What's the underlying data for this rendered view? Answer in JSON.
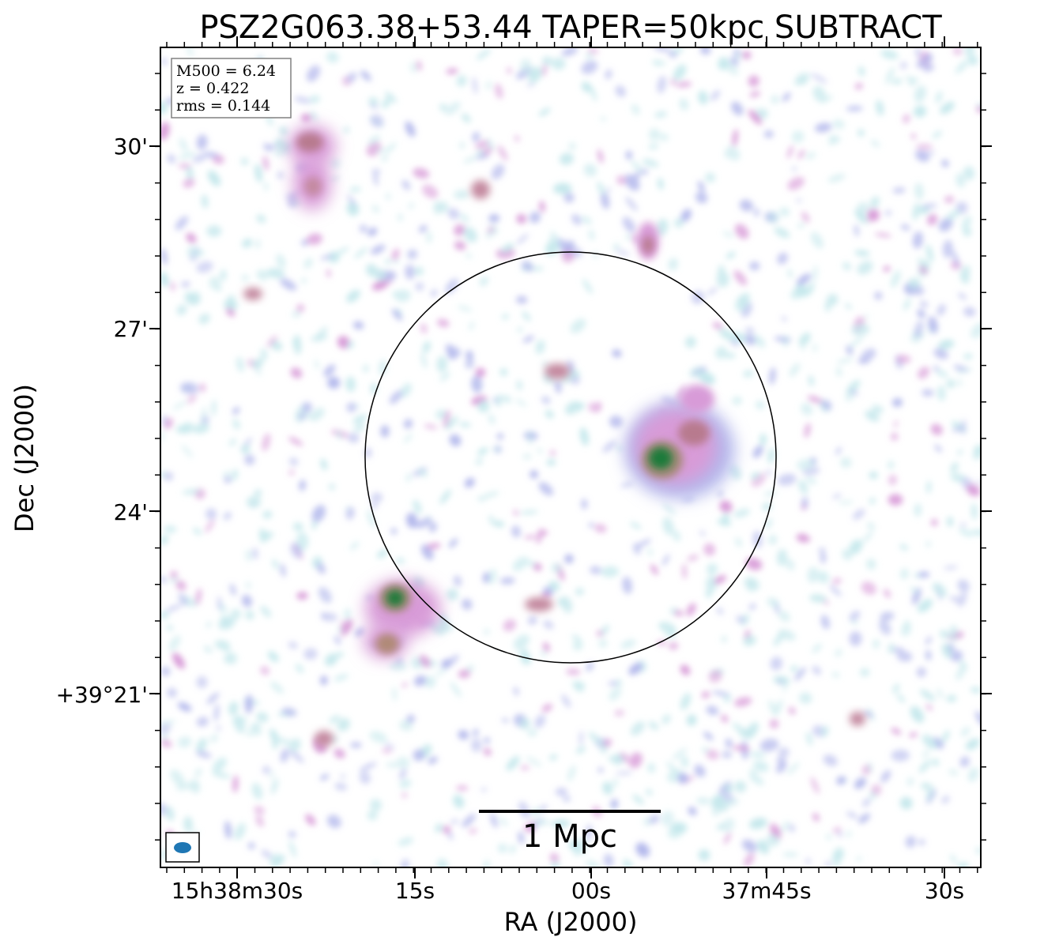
{
  "figure": {
    "title": "PSZ2G063.38+53.44 TAPER=50kpc SUBTRACT",
    "xlabel": "RA (J2000)",
    "ylabel": "Dec (J2000)",
    "x_ticks": [
      "15h38m30s",
      "15s",
      "00s",
      "37m45s",
      "30s"
    ],
    "y_ticks": [
      "30'",
      "27'",
      "24'",
      "+39°21'"
    ],
    "info_box": {
      "line1": "M500 = 6.24",
      "line2": "z = 0.422",
      "line3": "rms = 0.144"
    },
    "scale_bar_label": "1 Mpc",
    "colors": {
      "low": "#c5e8ec",
      "mid_low": "#b3b8ec",
      "mid": "#d89bd8",
      "mid_high": "#b87a8e",
      "high": "#1f7a3a",
      "beam": "#1f77b4",
      "circle": "#000000"
    },
    "icons": {
      "beam": "beam-ellipse-icon",
      "aperture": "aperture-circle"
    }
  }
}
